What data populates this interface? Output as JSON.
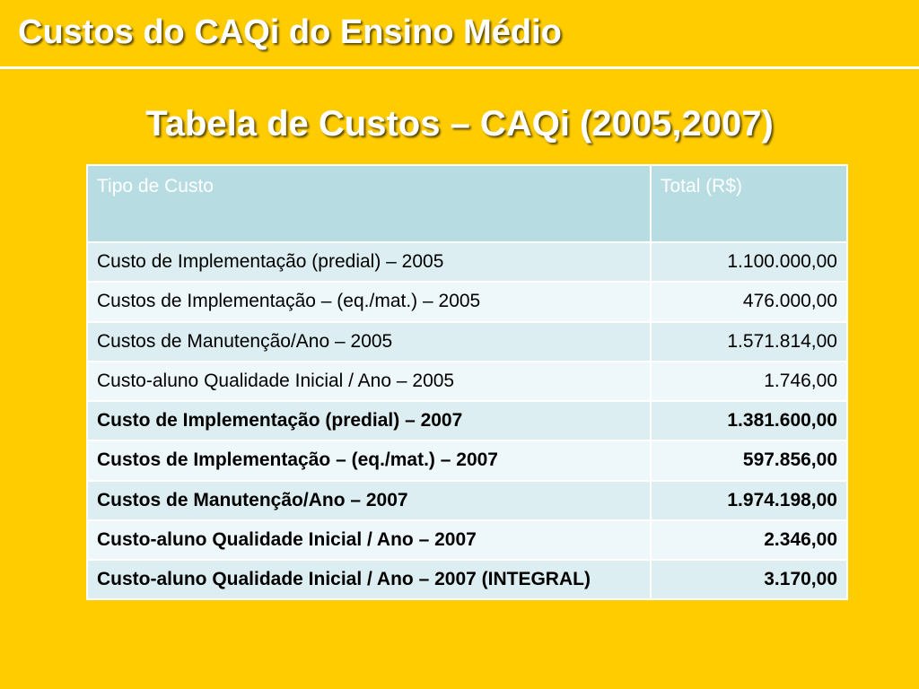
{
  "slide": {
    "title": "Custos do CAQi do Ensino Médio",
    "subtitle": "Tabela de Custos – CAQi (2005,2007)"
  },
  "table": {
    "headers": [
      "Tipo de Custo",
      "Total (R$)"
    ],
    "rows": [
      {
        "label": "Custo de Implementação (predial) – 2005",
        "value": "1.100.000,00"
      },
      {
        "label": "Custos de Implementação – (eq./mat.) – 2005",
        "value": "476.000,00"
      },
      {
        "label": "Custos de Manutenção/Ano – 2005",
        "value": "1.571.814,00"
      },
      {
        "label": "Custo-aluno Qualidade Inicial / Ano – 2005",
        "value": "1.746,00"
      },
      {
        "label": "Custo de Implementação (predial) – 2007",
        "value": "1.381.600,00"
      },
      {
        "label": "Custos de Implementação – (eq./mat.) – 2007",
        "value": "597.856,00"
      },
      {
        "label": "Custos de Manutenção/Ano – 2007",
        "value": "1.974.198,00"
      },
      {
        "label": "Custo-aluno Qualidade Inicial / Ano – 2007",
        "value": "2.346,00"
      },
      {
        "label": "Custo-aluno Qualidade Inicial / Ano – 2007 (INTEGRAL)",
        "value": "3.170,00"
      }
    ]
  },
  "colors": {
    "background": "#ffcc00",
    "header_fill": "#b7dde3",
    "row_band_a": "#dceef1",
    "row_band_b": "#eef7f9"
  }
}
